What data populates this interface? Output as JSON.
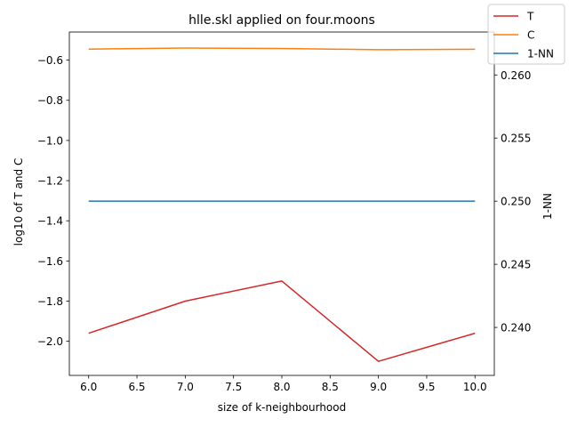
{
  "chart_data": {
    "type": "line",
    "title": "hlle.skl applied on four.moons",
    "xlabel": "size of k-neighbourhood",
    "ylabel": "log10 of T and C",
    "y2label": "1-NN",
    "x": [
      6.0,
      7.0,
      8.0,
      9.0,
      10.0
    ],
    "xlim": [
      5.8,
      10.2
    ],
    "ylim": [
      -2.17,
      -0.46
    ],
    "y2lim": [
      0.2362,
      0.2634
    ],
    "xticks": [
      "6.0",
      "6.5",
      "7.0",
      "7.5",
      "8.0",
      "8.5",
      "9.0",
      "9.5",
      "10.0"
    ],
    "yticks": [
      "−2.0",
      "−1.8",
      "−1.6",
      "−1.4",
      "−1.2",
      "−1.0",
      "−0.8",
      "−0.6"
    ],
    "y2ticks": [
      "0.240",
      "0.245",
      "0.250",
      "0.255",
      "0.260"
    ],
    "series": [
      {
        "name": "T",
        "axis": "left",
        "color": "#d62728",
        "values": [
          -1.96,
          -1.8,
          -1.7,
          -2.1,
          -1.96
        ]
      },
      {
        "name": "C",
        "axis": "left",
        "color": "#ff7f0e",
        "values": [
          -0.545,
          -0.54,
          -0.542,
          -0.548,
          -0.546
        ]
      },
      {
        "name": "1-NN",
        "axis": "right",
        "color": "#1f77b4",
        "values": [
          0.25,
          0.25,
          0.25,
          0.25,
          0.25
        ]
      }
    ],
    "legend": "top-right",
    "grid": false
  }
}
